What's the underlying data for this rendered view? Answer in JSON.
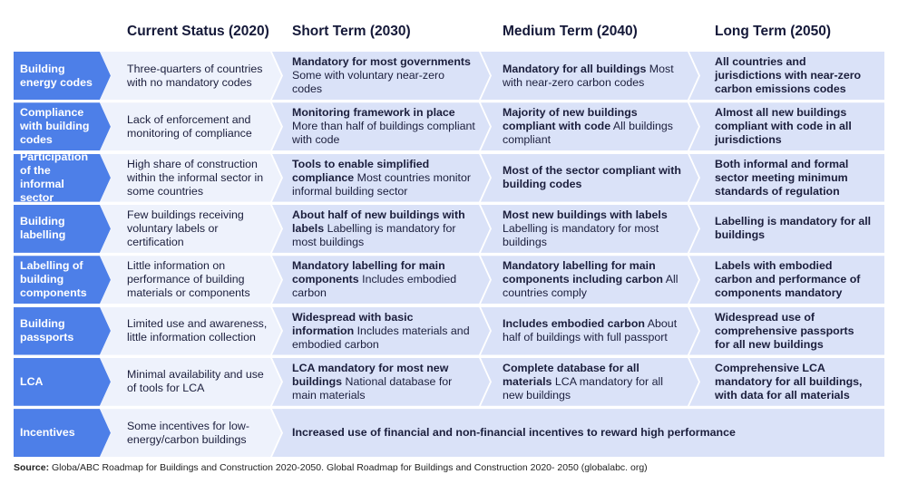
{
  "header": {
    "columns": [
      "Current Status (2020)",
      "Short Term (2030)",
      "Medium Term (2040)",
      "Long Term (2050)"
    ]
  },
  "table": {
    "rows": [
      {
        "label": "Building energy codes",
        "cells": [
          {
            "text": "Three-quarters of countries with no mandatory codes"
          },
          {
            "bold": "Mandatory for most governments",
            "text": "Some with voluntary near-zero codes"
          },
          {
            "bold": "Mandatory for all buildings",
            "text": "Most with near-zero carbon codes"
          },
          {
            "bold": "All countries and jurisdictions with near-zero carbon emissions codes"
          }
        ]
      },
      {
        "label": "Compliance with building codes",
        "cells": [
          {
            "text": "Lack of enforcement and monitoring of compliance"
          },
          {
            "bold": "Monitoring framework in place",
            "text": "More than half of buildings compliant with code"
          },
          {
            "bold": "Majority of new buildings compliant with code",
            "text": "All buildings compliant"
          },
          {
            "bold": "Almost all new buildings compliant with code in all jurisdictions"
          }
        ]
      },
      {
        "label": "Participation of the informal sector",
        "cells": [
          {
            "text": "High share of construction within the informal sector in some countries"
          },
          {
            "bold": "Tools to enable simplified compliance",
            "text": "Most countries monitor informal building sector"
          },
          {
            "bold": "Most of the sector compliant with building codes"
          },
          {
            "bold": "Both informal and formal sector meeting minimum standards of regulation"
          }
        ]
      },
      {
        "label": "Building labelling",
        "cells": [
          {
            "text": "Few buildings receiving voluntary labels or certification"
          },
          {
            "bold": "About half of new buildings with labels",
            "text": "Labelling is mandatory for most buildings"
          },
          {
            "bold": "Most new buildings with labels",
            "text": "Labelling is mandatory for most buildings"
          },
          {
            "bold": "Labelling is mandatory for all buildings"
          }
        ]
      },
      {
        "label": "Labelling of building components",
        "cells": [
          {
            "text": "Little information on performance of building materials or components"
          },
          {
            "bold": "Mandatory labelling for main components",
            "text": "Includes embodied carbon"
          },
          {
            "bold": "Mandatory labelling for main components including carbon",
            "text": "All countries comply"
          },
          {
            "bold": "Labels with embodied carbon and performance of components mandatory"
          }
        ]
      },
      {
        "label": "Building passports",
        "cells": [
          {
            "text": "Limited use and awareness, little information collection"
          },
          {
            "bold": "Widespread with basic information",
            "text": "Includes materials and embodied carbon"
          },
          {
            "bold": "Includes embodied carbon",
            "text": "About half of buildings with full passport"
          },
          {
            "bold": "Widespread use of comprehensive passports for all new buildings"
          }
        ]
      },
      {
        "label": "LCA",
        "cells": [
          {
            "text": "Minimal availability and use of tools for LCA"
          },
          {
            "bold": "LCA mandatory for most new buildings",
            "text": "National database for main materials"
          },
          {
            "bold": "Complete database for all materials",
            "text": "LCA mandatory for all new buildings"
          },
          {
            "bold": "Comprehensive LCA mandatory for all buildings, with data for all materials"
          }
        ]
      },
      {
        "label": "Incentives",
        "cells": [
          {
            "text": "Some incentives for low-energy/carbon buildings"
          },
          {
            "bold": "Increased use of financial and non-financial incentives to reward high performance"
          }
        ]
      }
    ]
  },
  "source": {
    "label": "Source:",
    "text": "Globa/ABC Roadmap for Buildings and Construction 2020-2050. Global Roadmap for Buildings and Construction 2020- 2050 (globalabc. org)"
  }
}
